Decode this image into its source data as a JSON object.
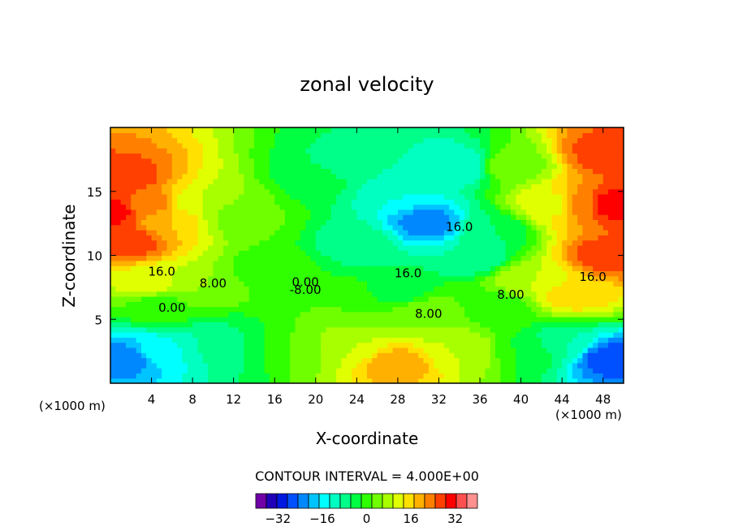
{
  "chart_data": {
    "type": "heatmap",
    "subtype": "filled-contour",
    "title": "zonal velocity",
    "xlabel": "X-coordinate",
    "ylabel": "Z-coordinate",
    "x_unit_left": "(×1000 m)",
    "x_unit_right": "(×1000 m)",
    "xlim": [
      0,
      50
    ],
    "ylim": [
      0,
      20
    ],
    "x_ticks": [
      4,
      8,
      12,
      16,
      20,
      24,
      28,
      32,
      36,
      40,
      44,
      48
    ],
    "y_ticks": [
      5,
      10,
      15
    ],
    "contour_interval_text": "CONTOUR INTERVAL = 4.000E+00",
    "contour_labels": [
      "16.0",
      "8.00",
      "0.00",
      "0.00",
      "-8.00",
      "16.0",
      "8.00",
      "16.0",
      "8.00",
      "16.0"
    ],
    "colorbar": {
      "levels": [
        -40,
        -36,
        -32,
        -28,
        -24,
        -20,
        -16,
        -12,
        -8,
        -4,
        0,
        4,
        8,
        12,
        16,
        20,
        24,
        28,
        32,
        36,
        40
      ],
      "colors": [
        "#7000a8",
        "#2000b8",
        "#0018e0",
        "#0050ff",
        "#0088ff",
        "#00c4ff",
        "#00ffff",
        "#00ffc0",
        "#00ff88",
        "#00ff40",
        "#30ff00",
        "#70ff00",
        "#a8ff00",
        "#e0ff00",
        "#ffe000",
        "#ffb000",
        "#ff8000",
        "#ff4000",
        "#ff0000",
        "#ff5050",
        "#ff9090"
      ],
      "tick_values": [
        -32,
        -16,
        0,
        16,
        32
      ]
    },
    "field": [
      {
        "x": 0,
        "z": 13.5,
        "u": 34
      },
      {
        "x": 1.5,
        "z": 16,
        "u": 30
      },
      {
        "x": 1.5,
        "z": 11,
        "u": 30
      },
      {
        "x": 4,
        "z": 14,
        "u": 26
      },
      {
        "x": 6,
        "z": 13,
        "u": 20
      },
      {
        "x": 8,
        "z": 14,
        "u": 14
      },
      {
        "x": 10,
        "z": 14,
        "u": 8
      },
      {
        "x": 13,
        "z": 13,
        "u": 4
      },
      {
        "x": 4,
        "z": 8,
        "u": 14
      },
      {
        "x": 8,
        "z": 7.5,
        "u": 8
      },
      {
        "x": 5,
        "z": 6,
        "u": 2
      },
      {
        "x": 1.5,
        "z": 2,
        "u": -22
      },
      {
        "x": 5,
        "z": 2.5,
        "u": -14
      },
      {
        "x": 9,
        "z": 3,
        "u": -8
      },
      {
        "x": 12,
        "z": 3,
        "u": -4
      },
      {
        "x": 16,
        "z": 9,
        "u": 1
      },
      {
        "x": 18,
        "z": 3,
        "u": 4
      },
      {
        "x": 20,
        "z": 16,
        "u": -2
      },
      {
        "x": 23,
        "z": 17,
        "u": -6
      },
      {
        "x": 24,
        "z": 11,
        "u": -6
      },
      {
        "x": 28,
        "z": 15,
        "u": -12
      },
      {
        "x": 31,
        "z": 12.5,
        "u": -22
      },
      {
        "x": 34,
        "z": 17,
        "u": -12
      },
      {
        "x": 35,
        "z": 10,
        "u": -8
      },
      {
        "x": 28,
        "z": 7,
        "u": -2
      },
      {
        "x": 24,
        "z": 6,
        "u": 4
      },
      {
        "x": 30,
        "z": 5.5,
        "u": 8
      },
      {
        "x": 23,
        "z": 3,
        "u": 12
      },
      {
        "x": 28,
        "z": 1.5,
        "u": 22
      },
      {
        "x": 34,
        "z": 2.5,
        "u": 12
      },
      {
        "x": 37,
        "z": 12,
        "u": -4
      },
      {
        "x": 38,
        "z": 6,
        "u": 2
      },
      {
        "x": 39,
        "z": 17,
        "u": 6
      },
      {
        "x": 41,
        "z": 8,
        "u": 12
      },
      {
        "x": 43,
        "z": 14,
        "u": 14
      },
      {
        "x": 45,
        "z": 7,
        "u": 18
      },
      {
        "x": 46,
        "z": 14,
        "u": 26
      },
      {
        "x": 48.5,
        "z": 14,
        "u": 34
      },
      {
        "x": 48.5,
        "z": 18,
        "u": 30
      },
      {
        "x": 48.5,
        "z": 10,
        "u": 30
      },
      {
        "x": 44,
        "z": 3,
        "u": -8
      },
      {
        "x": 48.5,
        "z": 2,
        "u": -26
      },
      {
        "x": 41,
        "z": 2.5,
        "u": 0
      }
    ]
  }
}
